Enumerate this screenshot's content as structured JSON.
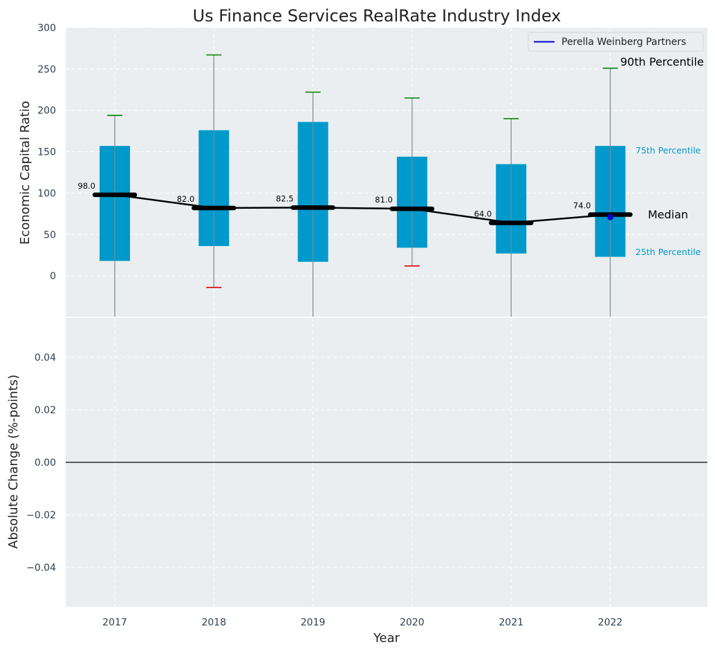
{
  "chart_data": [
    {
      "type": "box",
      "title": "Us Finance Services RealRate Industry Index",
      "ylabel": "Economic Capital Ratio",
      "xlabel": "",
      "ylim": [
        -50,
        300
      ],
      "yticks": [
        0,
        50,
        100,
        150,
        200,
        250,
        300
      ],
      "categories": [
        "2017",
        "2018",
        "2019",
        "2020",
        "2021",
        "2022"
      ],
      "percentile_25": [
        18,
        36,
        17,
        34,
        27,
        23
      ],
      "percentile_75": [
        157,
        176,
        186,
        144,
        135,
        157
      ],
      "median": [
        98.0,
        82.0,
        82.5,
        81.0,
        64.0,
        74.0
      ],
      "median_labels": [
        "98.0",
        "82.0",
        "82.5",
        "81.0",
        "64.0",
        "74.0"
      ],
      "percentile_90": [
        194,
        267,
        222,
        215,
        190,
        251
      ],
      "percentile_10": [
        -50,
        -14,
        -50,
        12,
        -50,
        -50
      ],
      "company_series": {
        "name": "Perella Weinberg Partners",
        "x": [
          "2022"
        ],
        "values": [
          71
        ]
      },
      "legend": {
        "entries": [
          "Perella Weinberg Partners"
        ],
        "placement": "top-right"
      },
      "annotations": {
        "p90": "90th Percentile",
        "p75": "75th Percentile",
        "median": "Median",
        "p25": "25th Percentile"
      },
      "grid": true,
      "colors": {
        "box": "#0099cc",
        "median": "#000000",
        "upper_whisker": "#008000",
        "lower_whisker": "#dd0000",
        "company": "#0000cc",
        "background": "#eaeef0"
      }
    },
    {
      "type": "line",
      "ylabel": "Absolute Change (%-points)",
      "xlabel": "Year",
      "ylim": [
        -0.055,
        0.055
      ],
      "yticks": [
        -0.04,
        -0.02,
        0.0,
        0.02,
        0.04
      ],
      "ytick_labels": [
        "−0.04",
        "−0.02",
        "0.00",
        "0.02",
        "0.04"
      ],
      "categories": [
        "2017",
        "2018",
        "2019",
        "2020",
        "2021",
        "2022"
      ],
      "baseline": 0,
      "grid": true
    }
  ]
}
